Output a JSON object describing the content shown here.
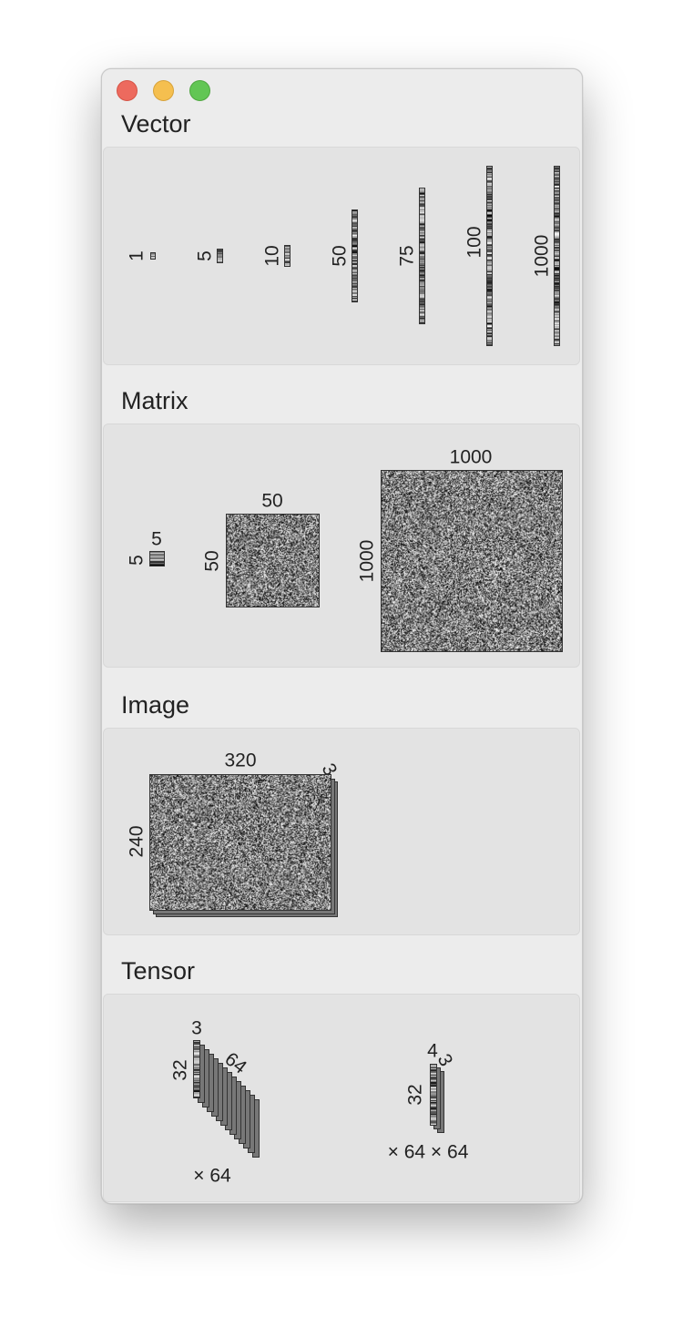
{
  "window": {
    "controls": [
      "close",
      "minimize",
      "maximize"
    ]
  },
  "sections": {
    "vector": {
      "title": "Vector",
      "items": [
        "1",
        "5",
        "10",
        "50",
        "75",
        "100",
        "1000"
      ]
    },
    "matrix": {
      "title": "Matrix",
      "items": [
        {
          "rows": "5",
          "cols": "5"
        },
        {
          "rows": "50",
          "cols": "50"
        },
        {
          "rows": "1000",
          "cols": "1000"
        }
      ]
    },
    "image": {
      "title": "Image",
      "height": "240",
      "width": "320",
      "channels": "3"
    },
    "tensor": {
      "title": "Tensor",
      "items": [
        {
          "top": "3",
          "side": "32",
          "depth": "64",
          "multiplier": "× 64"
        },
        {
          "top": "4",
          "side": "32",
          "depth": "3",
          "multiplier": "× 64 × 64"
        }
      ]
    }
  },
  "colors": {
    "close": "#ed6a5e",
    "minimize": "#f5bf4f",
    "maximize": "#62c654",
    "window_bg": "#ececec",
    "panel_bg": "#e3e3e3"
  }
}
